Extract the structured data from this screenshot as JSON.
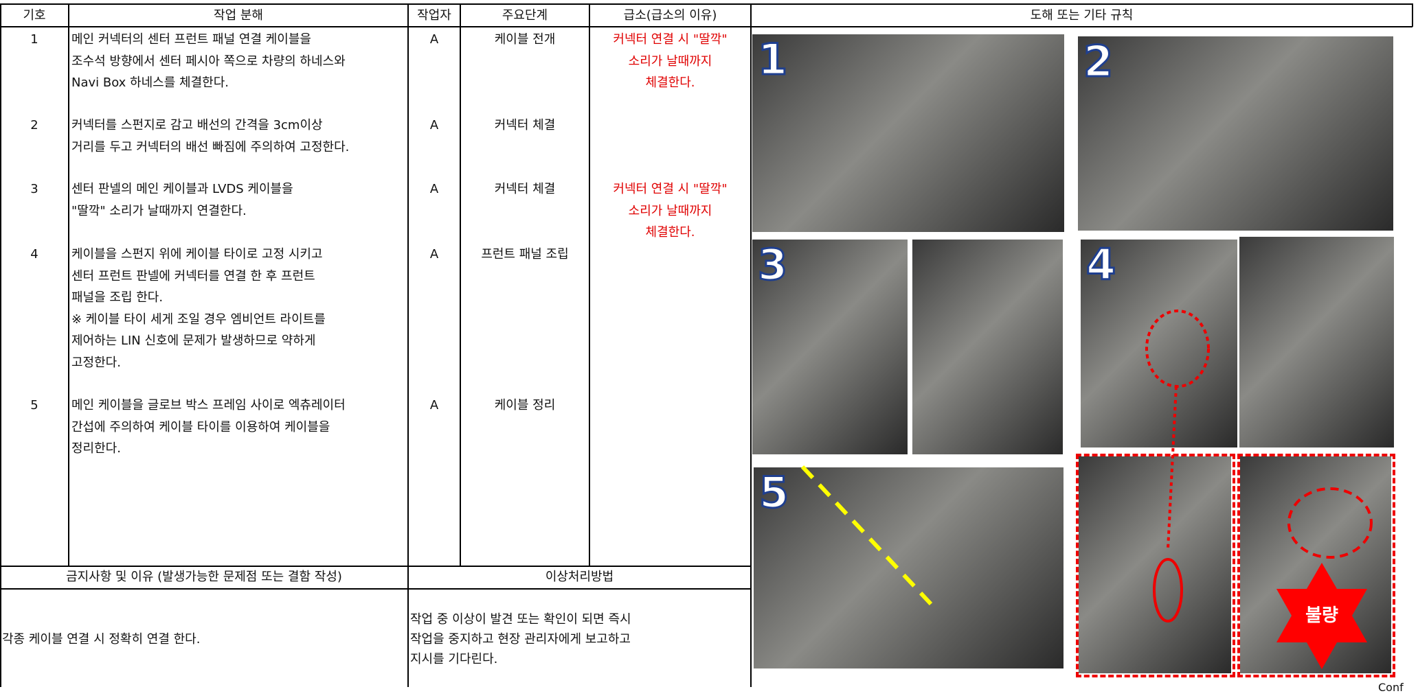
{
  "header": {
    "code": "기호",
    "breakdown": "작업 분해",
    "worker": "작업자",
    "step": "주요단계",
    "key": "급소(급소의 이유)",
    "figure": "도해 또는 기타 규칙"
  },
  "rows": [
    {
      "code": "1",
      "lines": [
        "메인 커넥터의 센터 프런트 패널 연결 케이블을",
        "조수석 방향에서 센터 페시아 쪽으로 차량의 하네스와",
        "Navi Box 하네스를 체결한다."
      ],
      "worker": "A",
      "step": "케이블 전개",
      "key": [
        "커넥터 연결 시 \"딸깍\"",
        "소리가 날때까지",
        "체결한다."
      ]
    },
    {
      "code": "2",
      "lines": [
        "커넥터를 스펀지로 감고 배선의 간격을 3cm이상",
        "거리를 두고 커넥터의 배선 빠짐에 주의하여 고정한다."
      ],
      "worker": "A",
      "step": "커넥터 체결",
      "key": []
    },
    {
      "code": "3",
      "lines": [
        "센터 판넬의 메인 케이블과 LVDS 케이블을",
        "\"딸깍\" 소리가 날때까지 연결한다."
      ],
      "worker": "A",
      "step": "커넥터 체결",
      "key": [
        "커넥터 연결 시 \"딸깍\"",
        "소리가 날때까지",
        "체결한다."
      ]
    },
    {
      "code": "4",
      "lines": [
        "케이블을 스펀지 위에 케이블 타이로 고정 시키고",
        "센터 프런트 판넬에 커넥터를 연결 한 후 프런트",
        "패널을 조립 한다.",
        "※ 케이블 타이 세게 조일 경우 엠비언트 라이트를",
        "제어하는 LIN 신호에 문제가 발생하므로 약하게",
        "고정한다."
      ],
      "worker": "A",
      "step": "프런트 패널 조립",
      "key": []
    },
    {
      "code": "5",
      "lines": [
        "메인 케이블을 글로브 박스 프레임 사이로 엑츄레이터",
        "간섭에 주의하여 케이블 타이를 이용하여 케이블을",
        "정리한다."
      ],
      "worker": "A",
      "step": "케이블 정리",
      "key": []
    }
  ],
  "prohibition": {
    "title": "금지사항 및 이유 (발생가능한 문제점 또는 결함 작성)",
    "text": "각종 케이블 연결 시 정확히 연결 한다."
  },
  "abnormal": {
    "title": "이상처리방법",
    "lines": [
      "작업 중 이상이 발견 또는 확인이 되면 즉시",
      "작업을 중지하고 현장 관리자에게 보고하고",
      "지시를 기다린다."
    ]
  },
  "figures": {
    "labels": [
      "1",
      "2",
      "3",
      "4",
      "5"
    ],
    "defect": "불량"
  },
  "footer": "Conf"
}
